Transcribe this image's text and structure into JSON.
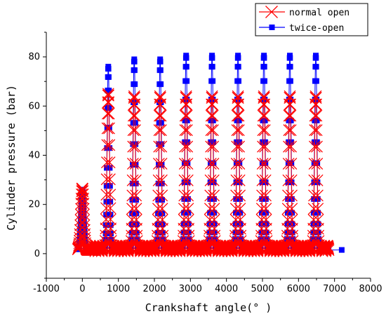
{
  "chart_data": {
    "type": "line",
    "title": "",
    "xlabel": "Crankshaft angle(° )",
    "ylabel": "Cylinder pressure (bar)",
    "xlim": [
      -1000,
      8000
    ],
    "ylim": [
      -10,
      90
    ],
    "xticks": [
      -1000,
      0,
      1000,
      2000,
      3000,
      4000,
      5000,
      6000,
      7000,
      8000
    ],
    "yticks": [
      0,
      20,
      40,
      60,
      80
    ],
    "grid": false,
    "legend_position": "top-right",
    "colors": {
      "normal": "#ff0000",
      "twice": "#0000ff"
    },
    "series": [
      {
        "name": "normal open",
        "marker": "x",
        "color": "#ff0000",
        "cycle_centers": [
          0,
          720,
          1440,
          2160,
          2880,
          3600,
          4320,
          5040,
          5760,
          6480
        ],
        "cycle_peaks": [
          25,
          64,
          63,
          63,
          63,
          63,
          63,
          63,
          63,
          63
        ]
      },
      {
        "name": "twice-open",
        "marker": "square",
        "color": "#0000ff",
        "cycle_centers": [
          0,
          720,
          1440,
          2160,
          2880,
          3600,
          4320,
          5040,
          5760,
          6480
        ],
        "cycle_peaks": [
          24.5,
          75,
          78,
          78,
          79.5,
          79.5,
          79.5,
          79.5,
          79.5,
          79.5
        ],
        "end_point": [
          7200,
          1.5
        ]
      }
    ]
  }
}
